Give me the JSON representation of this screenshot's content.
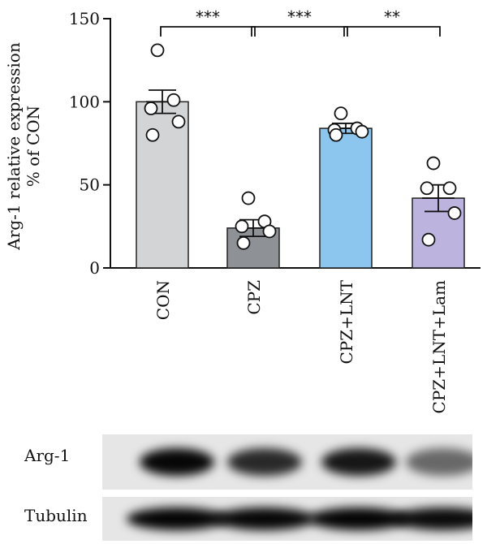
{
  "chart_data": {
    "type": "bar",
    "title": "",
    "ylabel_lines": [
      "Arg-1 relative expression",
      "% of CON"
    ],
    "xlabel": "",
    "ylim": [
      0,
      150
    ],
    "yticks": [
      0,
      50,
      100,
      150
    ],
    "grid": false,
    "categories": [
      "CON",
      "CPZ",
      "CPZ+LNT",
      "CPZ+LNT+Lam"
    ],
    "values": [
      100,
      24,
      84,
      42
    ],
    "errors": [
      7,
      5,
      3,
      8
    ],
    "colors": [
      "#d3d4d6",
      "#8e9196",
      "#8cc6ee",
      "#bcb4de"
    ],
    "points": [
      [
        131,
        101,
        96,
        88,
        80
      ],
      [
        42,
        28,
        25,
        22,
        15
      ],
      [
        93,
        84,
        83,
        82,
        80
      ],
      [
        63,
        48,
        48,
        33,
        17
      ]
    ],
    "significance": [
      {
        "from": 0,
        "to": 1,
        "label": "***"
      },
      {
        "from": 1,
        "to": 2,
        "label": "***"
      },
      {
        "from": 2,
        "to": 3,
        "label": "**"
      }
    ]
  },
  "blot": {
    "rows": [
      {
        "label": "Arg-1",
        "intensity": [
          0.97,
          0.82,
          0.9,
          0.55
        ]
      },
      {
        "label": "Tubulin",
        "intensity": [
          0.98,
          0.97,
          0.98,
          0.95
        ]
      }
    ]
  }
}
